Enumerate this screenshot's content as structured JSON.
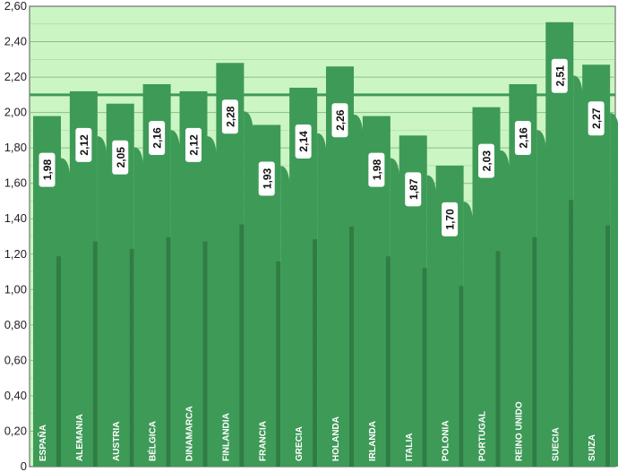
{
  "chart_data": {
    "type": "bar",
    "categories": [
      "ESPAÑA",
      "ALEMANIA",
      "AUSTRIA",
      "BÉLGICA",
      "DINAMARCA",
      "FINLANDIA",
      "FRANCIA",
      "GRECIA",
      "HOLANDA",
      "IRLANDA",
      "ITALIA",
      "POLONIA",
      "PORTUGAL",
      "REINO UNIDO",
      "SUECIA",
      "SUIZA"
    ],
    "values": [
      1.98,
      2.12,
      2.05,
      2.16,
      2.12,
      2.28,
      1.93,
      2.14,
      2.26,
      1.98,
      1.87,
      1.7,
      2.03,
      2.16,
      2.51,
      2.27
    ],
    "value_labels": [
      "1,98",
      "2,12",
      "2,05",
      "2,16",
      "2,12",
      "2,28",
      "1,93",
      "2,14",
      "2,26",
      "1,98",
      "1,87",
      "1,70",
      "2,03",
      "2,16",
      "2,51",
      "2,27"
    ],
    "yticks": [
      "0",
      "0,20",
      "0,40",
      "0,60",
      "0,80",
      "1,00",
      "1,20",
      "1,40",
      "1,60",
      "1,80",
      "2,00",
      "2,20",
      "2,40",
      "2,60"
    ],
    "ylim": [
      0,
      2.6
    ],
    "reference_line": 2.1,
    "grid": true,
    "colors": {
      "plot_background": "#ccf5c4",
      "bar": "#3e9a57",
      "bar_dark": "#2f7d44",
      "grid": "#7dbf7d",
      "reference_line": "#3e9a57",
      "label_box": "#ffffff"
    }
  }
}
